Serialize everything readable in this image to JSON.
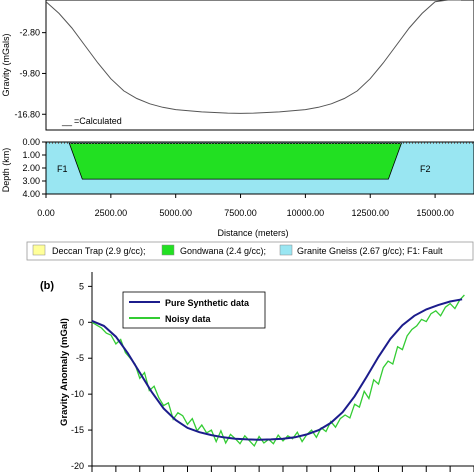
{
  "chart_data": [
    {
      "type": "line",
      "ylabel": "Gravity (mGals)",
      "yticks": [
        "-2.80",
        "-9.80",
        "-16.80"
      ],
      "ylim": [
        -19.5,
        2.8
      ],
      "xlim": [
        0,
        16500
      ],
      "series": [
        {
          "name": "=Calculated",
          "x": [
            0,
            500,
            1000,
            1500,
            2000,
            2500,
            3000,
            3500,
            4000,
            4500,
            5000,
            6000,
            7000,
            7500,
            8000,
            9000,
            10000,
            10500,
            11000,
            11500,
            12000,
            12500,
            13000,
            13500,
            14000,
            14500,
            15000,
            15500,
            16000
          ],
          "y": [
            2.5,
            0.5,
            -2.0,
            -5.0,
            -8.0,
            -10.7,
            -12.8,
            -14.1,
            -15.0,
            -15.6,
            -16.0,
            -16.4,
            -16.6,
            -16.65,
            -16.6,
            -16.4,
            -16.0,
            -15.6,
            -15.0,
            -14.1,
            -12.8,
            -10.7,
            -8.0,
            -5.0,
            -2.0,
            0.5,
            2.5,
            2.8,
            2.8
          ]
        }
      ],
      "legend_marker": "__"
    },
    {
      "type": "area",
      "ylabel": "Depth (km)",
      "xlabel": "Distance (meters)",
      "yticks": [
        "0.00",
        "1.00",
        "2.00",
        "3.00",
        "4.00"
      ],
      "xticks": [
        "0.00",
        "2500.00",
        "5000.00",
        "7500.00",
        "10000.00",
        "12500.00",
        "15000.00"
      ],
      "xlim": [
        0,
        16500
      ],
      "ylim": [
        4,
        0
      ],
      "basin": {
        "top_left": 900,
        "top_right": 13700,
        "bottom_left": 1400,
        "bottom_right": 13200,
        "top": 0.1,
        "bottom": 2.85
      },
      "fault_labels": [
        "F1",
        "F2"
      ],
      "colors": {
        "gneiss": "#99e6f2",
        "gondwana": "#22e022",
        "trap": "#ffff99"
      },
      "legend": [
        {
          "label": "Deccan Trap (2.9 g/cc);",
          "color": "#ffff99"
        },
        {
          "label": "Gondwana (2.4 g/cc);",
          "color": "#22e022"
        },
        {
          "label": "Granite Gneiss (2.67 g/cc); F1: Fault",
          "color": "#99e6f2"
        }
      ]
    },
    {
      "type": "line",
      "panel_label": "(b)",
      "ylabel": "Gravity Anomaly (mGal)",
      "yticks": [
        "5",
        "0",
        "-5",
        "-10",
        "-15",
        "-20"
      ],
      "ylim": [
        -20,
        7
      ],
      "xlim": [
        0,
        16
      ],
      "series": [
        {
          "name": "Pure Synthetic data",
          "color": "#1c1c8c",
          "x": [
            0,
            0.5,
            1,
            1.5,
            2,
            2.5,
            3,
            3.5,
            4,
            4.5,
            5,
            5.5,
            6,
            6.5,
            7,
            7.5,
            8,
            8.5,
            9,
            9.5,
            10,
            10.5,
            11,
            11.5,
            12,
            12.5,
            13,
            13.5,
            14,
            14.5,
            15,
            15.5
          ],
          "y": [
            0.2,
            -0.5,
            -2.0,
            -4.3,
            -7.0,
            -9.7,
            -12.0,
            -13.6,
            -14.7,
            -15.3,
            -15.7,
            -16.0,
            -16.2,
            -16.3,
            -16.35,
            -16.3,
            -16.2,
            -16.0,
            -15.6,
            -15.0,
            -14.0,
            -12.5,
            -10.3,
            -7.6,
            -4.8,
            -2.3,
            -0.4,
            0.9,
            1.8,
            2.4,
            2.9,
            3.2
          ]
        },
        {
          "name": "Noisy data",
          "color": "#33cc33",
          "x": [
            0,
            0.2,
            0.4,
            0.6,
            0.8,
            1.0,
            1.2,
            1.4,
            1.6,
            1.8,
            2.0,
            2.2,
            2.4,
            2.6,
            2.8,
            3.0,
            3.2,
            3.4,
            3.6,
            3.8,
            4.0,
            4.2,
            4.4,
            4.6,
            4.8,
            5.0,
            5.2,
            5.4,
            5.6,
            5.8,
            6.0,
            6.2,
            6.4,
            6.6,
            6.8,
            7.0,
            7.2,
            7.4,
            7.6,
            7.8,
            8.0,
            8.2,
            8.4,
            8.6,
            8.8,
            9.0,
            9.2,
            9.4,
            9.6,
            9.8,
            10.0,
            10.2,
            10.4,
            10.6,
            10.8,
            11.0,
            11.2,
            11.4,
            11.6,
            11.8,
            12.0,
            12.2,
            12.4,
            12.6,
            12.8,
            13.0,
            13.2,
            13.4,
            13.6,
            13.8,
            14.0,
            14.2,
            14.4,
            14.6,
            14.8,
            15.0,
            15.2,
            15.4,
            15.6
          ],
          "y": [
            0.0,
            -0.4,
            -0.8,
            -1.5,
            -1.8,
            -3.0,
            -2.4,
            -4.2,
            -5.0,
            -5.8,
            -7.8,
            -7.0,
            -9.5,
            -8.9,
            -10.5,
            -11.6,
            -11.2,
            -13.5,
            -12.6,
            -13.0,
            -14.2,
            -13.4,
            -15.1,
            -14.3,
            -15.4,
            -15.0,
            -16.6,
            -15.1,
            -16.8,
            -15.6,
            -16.2,
            -16.9,
            -15.8,
            -16.5,
            -17.2,
            -15.9,
            -16.8,
            -16.3,
            -16.9,
            -15.7,
            -16.5,
            -15.8,
            -16.2,
            -15.3,
            -16.6,
            -15.6,
            -15.0,
            -16.0,
            -14.7,
            -15.2,
            -13.8,
            -14.6,
            -13.4,
            -12.9,
            -13.3,
            -11.4,
            -11.8,
            -9.6,
            -10.6,
            -8.0,
            -8.6,
            -6.3,
            -5.4,
            -5.8,
            -3.4,
            -3.8,
            -1.9,
            -1.0,
            -0.5,
            0.4,
            0.1,
            1.2,
            1.6,
            0.9,
            2.1,
            2.6,
            1.9,
            3.1,
            3.8
          ]
        }
      ]
    }
  ]
}
